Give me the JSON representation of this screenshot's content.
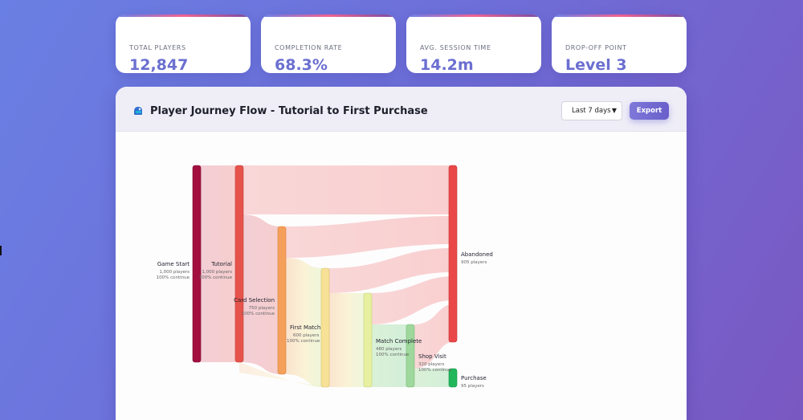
{
  "stats": [
    {
      "label": "TOTAL PLAYERS",
      "value": "12,847"
    },
    {
      "label": "COMPLETION RATE",
      "value": "68.3%"
    },
    {
      "label": "AVG. SESSION TIME",
      "value": "14.2m"
    },
    {
      "label": "DROP-OFF POINT",
      "value": "Level 3"
    }
  ],
  "panel": {
    "title": "Player Journey Flow - Tutorial to First Purchase",
    "icon": "controller-icon",
    "range": "Last 7 days",
    "export_label": "Export"
  },
  "sankey": {
    "stages": [
      {
        "name": "Game Start",
        "players": "1,000 players",
        "rate": "100% continue",
        "color": "#a20f3f"
      },
      {
        "name": "Tutorial",
        "players": "1,000 players",
        "rate": "100% continue",
        "color": "#e5534b"
      },
      {
        "name": "Card Selection",
        "players": "750 players",
        "rate": "100% continue",
        "color": "#f5a05a"
      },
      {
        "name": "First Match",
        "players": "600 players",
        "rate": "100% continue",
        "color": "#f7e197"
      },
      {
        "name": "Match Complete",
        "players": "480 players",
        "rate": "100% continue",
        "color": "#e6f0a0"
      },
      {
        "name": "Shop Visit",
        "players": "320 players",
        "rate": "100% continue",
        "color": "#9fd89c"
      }
    ],
    "outcomes": [
      {
        "name": "Abandoned",
        "players": "905 players",
        "color": "#ea4848"
      },
      {
        "name": "Purchase",
        "players": "95 players",
        "color": "#22b75a"
      }
    ]
  }
}
